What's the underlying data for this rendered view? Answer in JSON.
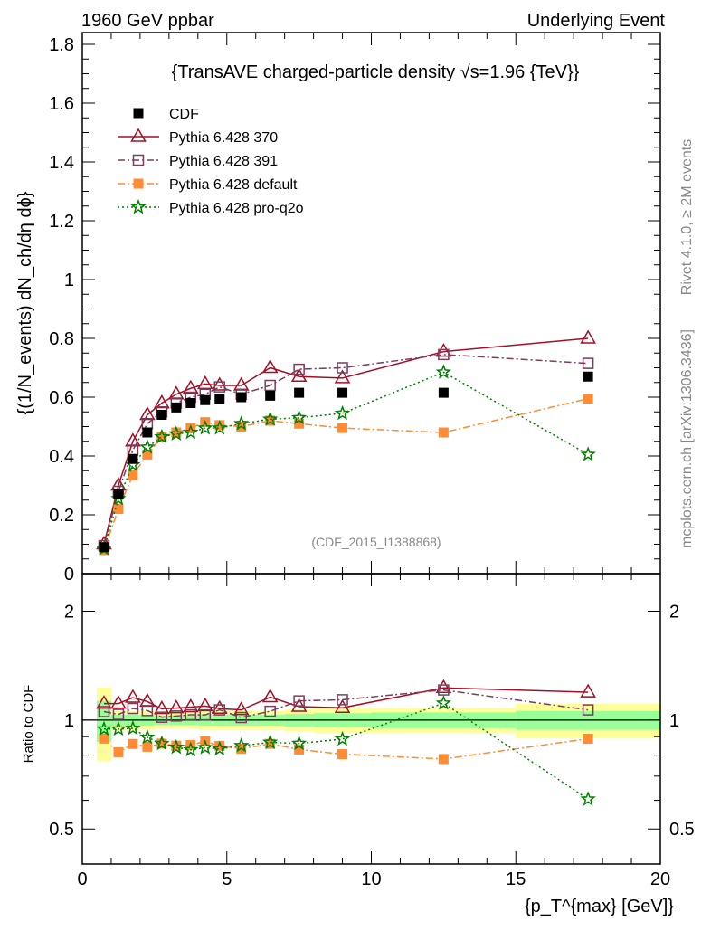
{
  "header": {
    "left": "1960 GeV ppbar",
    "right": "Underlying Event"
  },
  "side_labels": {
    "rivet": "Rivet 4.1.0, ≥ 2M events",
    "mcplots": "mcplots.cern.ch [arXiv:1306.3436]"
  },
  "watermark": "(CDF_2015_I1388868)",
  "chart_data": [
    {
      "type": "line",
      "title": "{TransAVE charged-particle density √s=1.96 {TeV}}",
      "ylabel": "{(1/N_events) dN_ch/dη dϕ}",
      "xlabel": "",
      "xlim": [
        0,
        20
      ],
      "ylim": [
        0,
        1.84
      ],
      "yticks": [
        "0",
        "0.2",
        "0.4",
        "0.6",
        "0.8",
        "1",
        "1.2",
        "1.4",
        "1.6",
        "1.8"
      ],
      "ytick_values": [
        0,
        0.2,
        0.4,
        0.6,
        0.8,
        1.0,
        1.2,
        1.4,
        1.6,
        1.8
      ],
      "legend_position": "top-left",
      "x": [
        0.75,
        1.25,
        1.75,
        2.25,
        2.75,
        3.25,
        3.75,
        4.25,
        4.75,
        5.5,
        6.5,
        7.5,
        9,
        12.5,
        17.5
      ],
      "series": [
        {
          "name": "CDF",
          "color": "#000000",
          "marker": "filled-square",
          "line": "none",
          "values": [
            0.09,
            0.27,
            0.39,
            0.48,
            0.54,
            0.565,
            0.58,
            0.59,
            0.595,
            0.6,
            0.605,
            0.615,
            0.615,
            0.615,
            0.67
          ]
        },
        {
          "name": "Pythia 6.428 370",
          "color": "#a50f25",
          "marker": "open-triangle",
          "line": "solid",
          "values": [
            0.1,
            0.3,
            0.45,
            0.54,
            0.58,
            0.61,
            0.63,
            0.645,
            0.64,
            0.64,
            0.7,
            0.67,
            0.665,
            0.755,
            0.8
          ]
        },
        {
          "name": "Pythia 6.428 391",
          "color": "#7a3d5c",
          "marker": "open-square",
          "line": "dashdot",
          "values": [
            0.095,
            0.28,
            0.42,
            0.51,
            0.55,
            0.58,
            0.6,
            0.61,
            0.635,
            0.61,
            0.64,
            0.695,
            0.7,
            0.745,
            0.715
          ]
        },
        {
          "name": "Pythia 6.428 default",
          "color": "#ff8c33",
          "marker": "filled-square",
          "line": "dashdot",
          "values": [
            0.08,
            0.22,
            0.335,
            0.405,
            0.465,
            0.48,
            0.495,
            0.515,
            0.505,
            0.5,
            0.52,
            0.51,
            0.495,
            0.48,
            0.595
          ]
        },
        {
          "name": "Pythia 6.428 pro-q2o",
          "color": "#008000",
          "marker": "star",
          "line": "dotted",
          "values": [
            0.085,
            0.255,
            0.37,
            0.43,
            0.465,
            0.475,
            0.48,
            0.495,
            0.495,
            0.51,
            0.525,
            0.53,
            0.545,
            0.685,
            0.405
          ]
        }
      ]
    },
    {
      "type": "line",
      "title": "",
      "ylabel": "Ratio to CDF",
      "xlabel": "{p_T^{max} [GeV]}",
      "yscale": "log",
      "xlim": [
        0,
        20
      ],
      "ylim": [
        0.4,
        2.54
      ],
      "xticks": [
        "0",
        "5",
        "10",
        "15",
        "20"
      ],
      "xtick_values": [
        0,
        5,
        10,
        15,
        20
      ],
      "yticks": [
        "0.5",
        "1",
        "2"
      ],
      "ytick_values": [
        0.5,
        1,
        2
      ],
      "bands": {
        "edges": [
          0.5,
          1,
          1.5,
          2,
          2.5,
          3,
          3.5,
          4,
          4.5,
          5,
          6,
          7,
          8,
          10,
          15,
          20
        ],
        "yellow_halfwidth": [
          0.23,
          0.06,
          0.06,
          0.06,
          0.055,
          0.055,
          0.055,
          0.06,
          0.06,
          0.06,
          0.06,
          0.07,
          0.08,
          0.08,
          0.11
        ],
        "green_halfwidth": [
          0.13,
          0.035,
          0.035,
          0.035,
          0.03,
          0.03,
          0.03,
          0.035,
          0.035,
          0.035,
          0.035,
          0.04,
          0.045,
          0.05,
          0.06
        ],
        "yellow_color": "#ffff99",
        "green_color": "#99ff99"
      }
    }
  ]
}
